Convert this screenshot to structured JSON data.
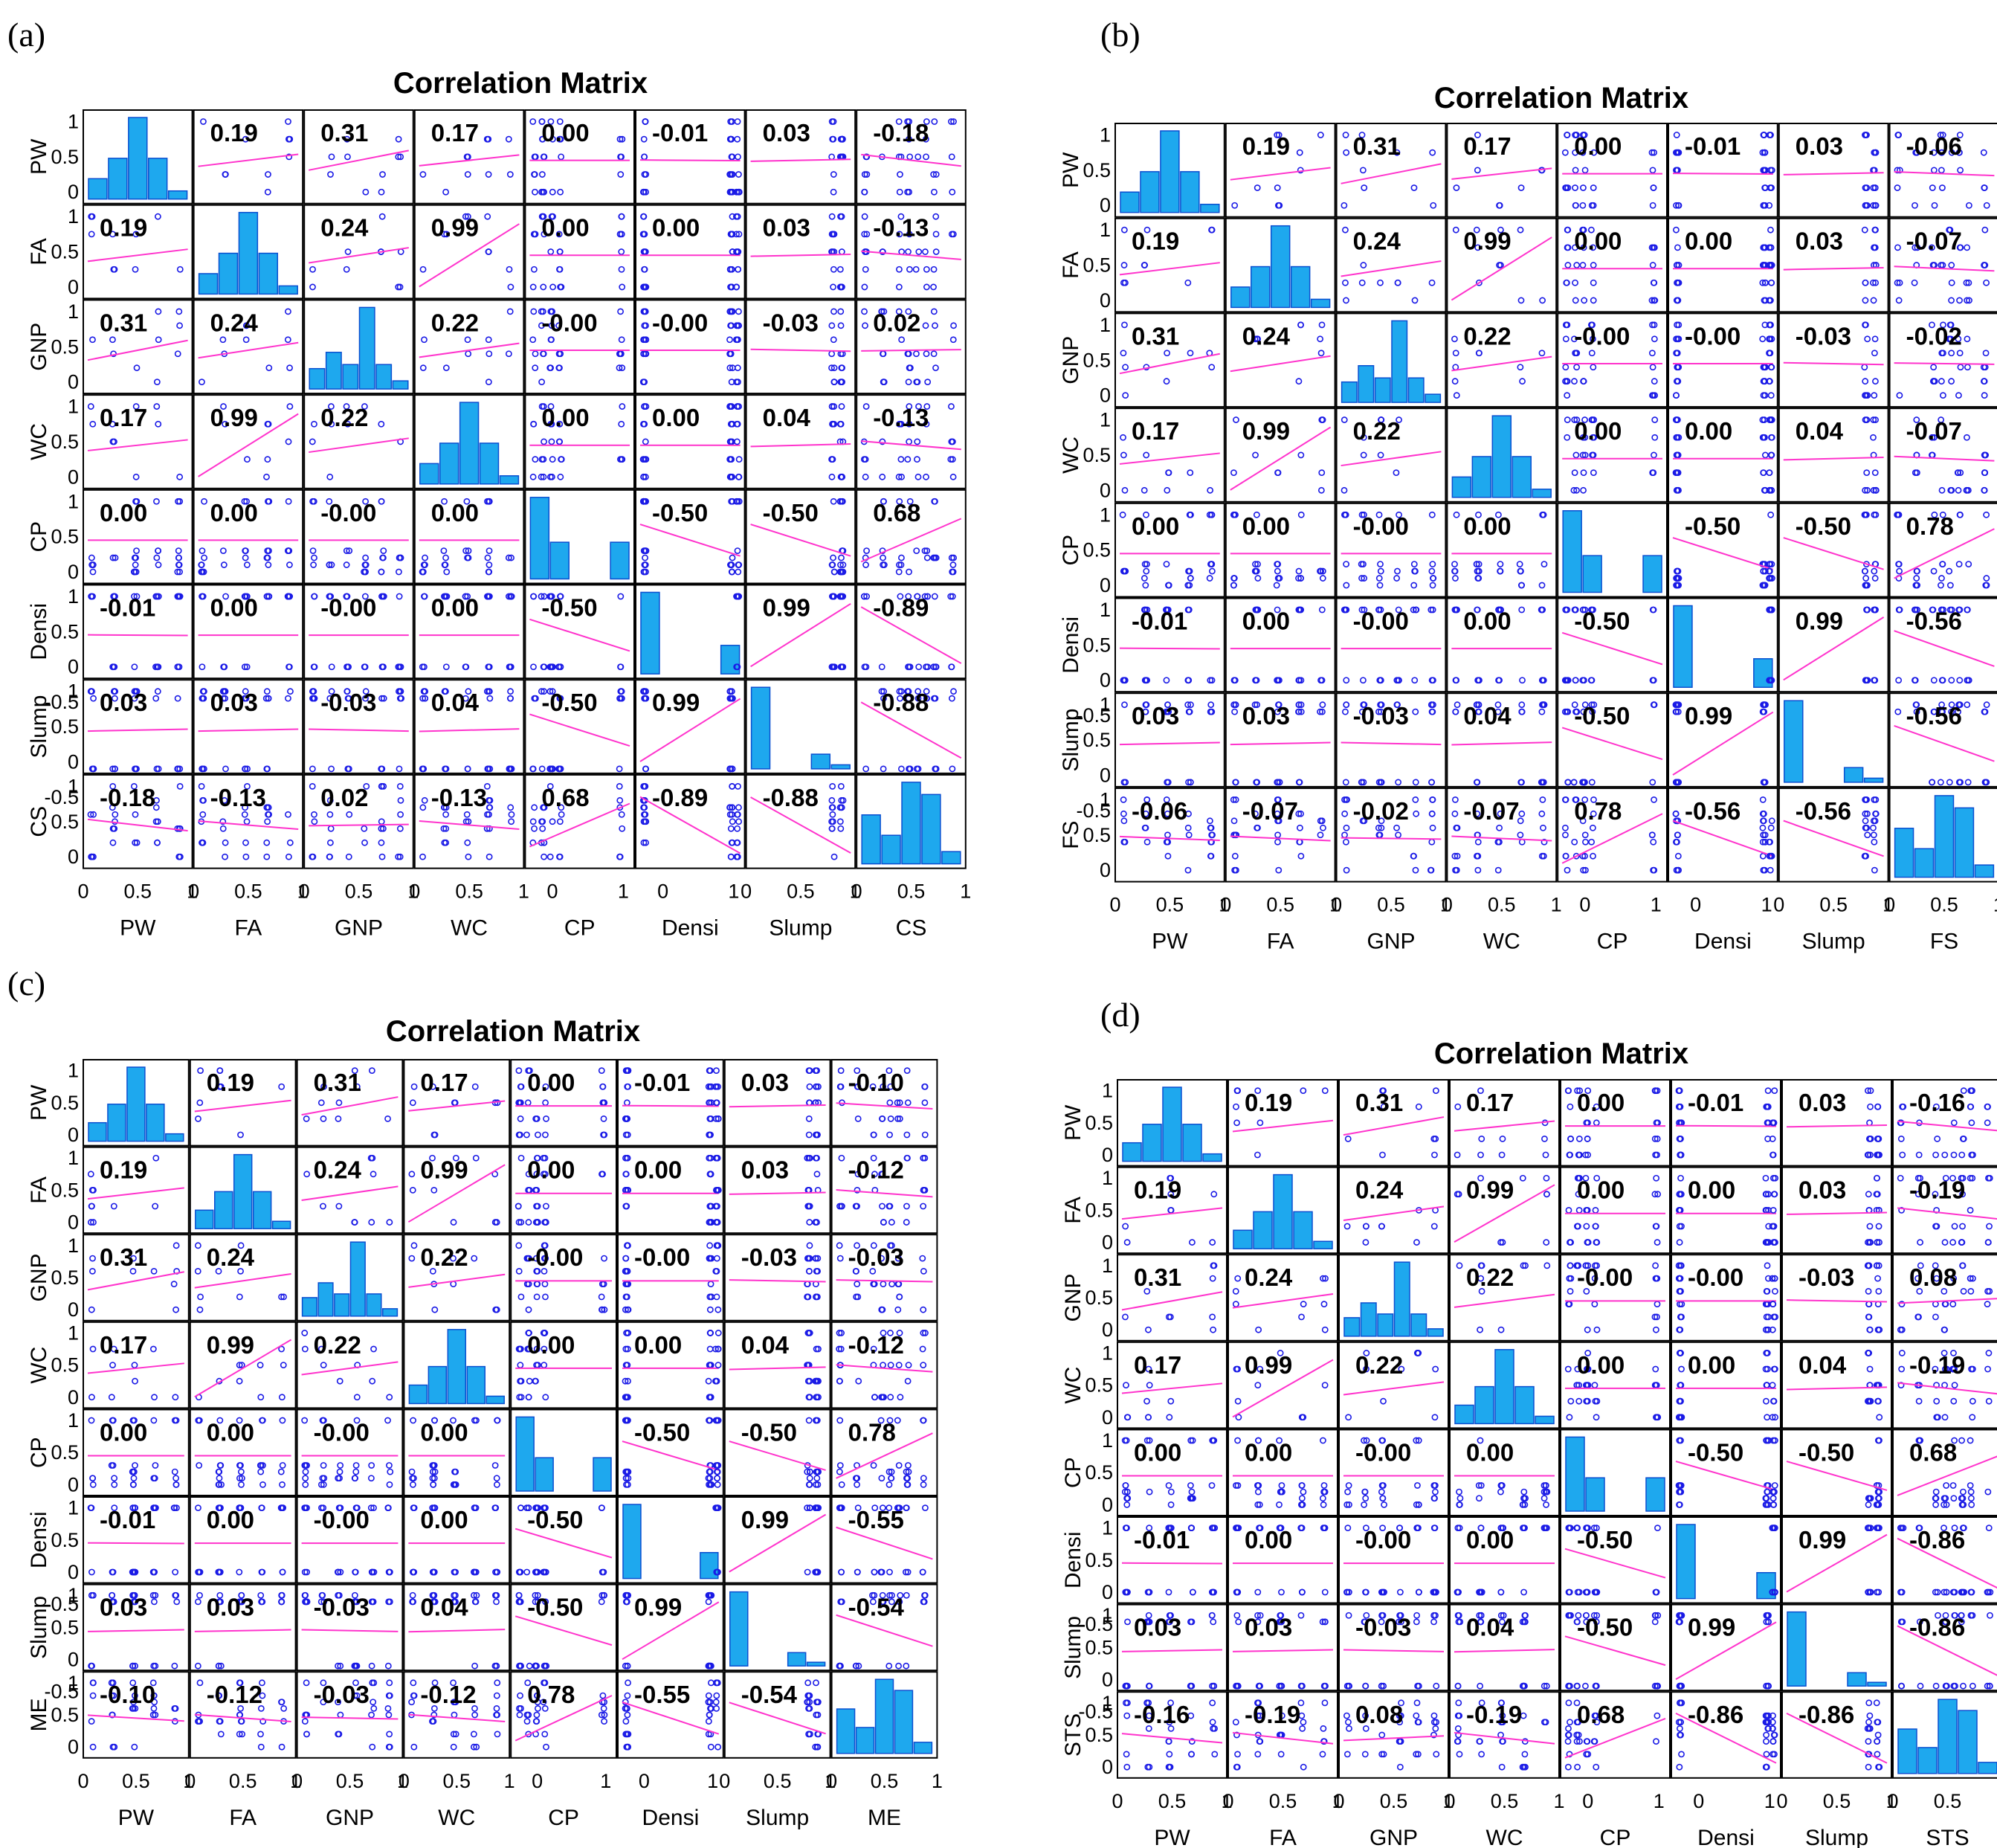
{
  "chart_data": [
    {
      "type": "scatter-matrix",
      "panel": "(a)",
      "title": "Correlation Matrix",
      "variables": [
        "PW",
        "FA",
        "GNP",
        "WC",
        "CP",
        "Densi",
        "Slump",
        "CS"
      ],
      "correlation": [
        [
          "",
          "0.19",
          "0.31",
          "0.17",
          "0.00",
          "-0.01",
          "0.03",
          "-0.18"
        ],
        [
          "0.19",
          "",
          "0.24",
          "0.99",
          "0.00",
          "0.00",
          "0.03",
          "-0.13"
        ],
        [
          "0.31",
          "0.24",
          "",
          "0.22",
          "-0.00",
          "-0.00",
          "-0.03",
          "0.02"
        ],
        [
          "0.17",
          "0.99",
          "0.22",
          "",
          "0.00",
          "0.00",
          "0.04",
          "-0.13"
        ],
        [
          "0.00",
          "0.00",
          "-0.00",
          "0.00",
          "",
          "-0.50",
          "-0.50",
          "0.68"
        ],
        [
          "-0.01",
          "0.00",
          "-0.00",
          "0.00",
          "-0.50",
          "",
          "0.99",
          "-0.89"
        ],
        [
          "0.03",
          "0.03",
          "-0.03",
          "0.04",
          "-0.50",
          "0.99",
          "",
          "-0.88"
        ],
        [
          "-0.18",
          "-0.13",
          "0.02",
          "-0.13",
          "0.68",
          "-0.89",
          "-0.88",
          ""
        ]
      ]
    },
    {
      "type": "scatter-matrix",
      "panel": "(b)",
      "title": "Correlation Matrix",
      "variables": [
        "PW",
        "FA",
        "GNP",
        "WC",
        "CP",
        "Densi",
        "Slump",
        "FS"
      ],
      "correlation": [
        [
          "",
          "0.19",
          "0.31",
          "0.17",
          "0.00",
          "-0.01",
          "0.03",
          "-0.06"
        ],
        [
          "0.19",
          "",
          "0.24",
          "0.99",
          "0.00",
          "0.00",
          "0.03",
          "-0.07"
        ],
        [
          "0.31",
          "0.24",
          "",
          "0.22",
          "-0.00",
          "-0.00",
          "-0.03",
          "-0.02"
        ],
        [
          "0.17",
          "0.99",
          "0.22",
          "",
          "0.00",
          "0.00",
          "0.04",
          "-0.07"
        ],
        [
          "0.00",
          "0.00",
          "-0.00",
          "0.00",
          "",
          "-0.50",
          "-0.50",
          "0.78"
        ],
        [
          "-0.01",
          "0.00",
          "-0.00",
          "0.00",
          "-0.50",
          "",
          "0.99",
          "-0.56"
        ],
        [
          "0.03",
          "0.03",
          "-0.03",
          "0.04",
          "-0.50",
          "0.99",
          "",
          "-0.56"
        ],
        [
          "-0.06",
          "-0.07",
          "-0.02",
          "-0.07",
          "0.78",
          "-0.56",
          "-0.56",
          ""
        ]
      ]
    },
    {
      "type": "scatter-matrix",
      "panel": "(c)",
      "title": "Correlation Matrix",
      "variables": [
        "PW",
        "FA",
        "GNP",
        "WC",
        "CP",
        "Densi",
        "Slump",
        "ME"
      ],
      "correlation": [
        [
          "",
          "0.19",
          "0.31",
          "0.17",
          "0.00",
          "-0.01",
          "0.03",
          "-0.10"
        ],
        [
          "0.19",
          "",
          "0.24",
          "0.99",
          "0.00",
          "0.00",
          "0.03",
          "-0.12"
        ],
        [
          "0.31",
          "0.24",
          "",
          "0.22",
          "-0.00",
          "-0.00",
          "-0.03",
          "-0.03"
        ],
        [
          "0.17",
          "0.99",
          "0.22",
          "",
          "0.00",
          "0.00",
          "0.04",
          "-0.12"
        ],
        [
          "0.00",
          "0.00",
          "-0.00",
          "0.00",
          "",
          "-0.50",
          "-0.50",
          "0.78"
        ],
        [
          "-0.01",
          "0.00",
          "-0.00",
          "0.00",
          "-0.50",
          "",
          "0.99",
          "-0.55"
        ],
        [
          "0.03",
          "0.03",
          "-0.03",
          "0.04",
          "-0.50",
          "0.99",
          "",
          "-0.54"
        ],
        [
          "-0.10",
          "-0.12",
          "-0.03",
          "-0.12",
          "0.78",
          "-0.55",
          "-0.54",
          ""
        ]
      ]
    },
    {
      "type": "scatter-matrix",
      "panel": "(d)",
      "title": "Correlation Matrix",
      "variables": [
        "PW",
        "FA",
        "GNP",
        "WC",
        "CP",
        "Densi",
        "Slump",
        "STS"
      ],
      "correlation": [
        [
          "",
          "0.19",
          "0.31",
          "0.17",
          "0.00",
          "-0.01",
          "0.03",
          "-0.16"
        ],
        [
          "0.19",
          "",
          "0.24",
          "0.99",
          "0.00",
          "0.00",
          "0.03",
          "-0.19"
        ],
        [
          "0.31",
          "0.24",
          "",
          "0.22",
          "-0.00",
          "-0.00",
          "-0.03",
          "0.08"
        ],
        [
          "0.17",
          "0.99",
          "0.22",
          "",
          "0.00",
          "0.00",
          "0.04",
          "-0.19"
        ],
        [
          "0.00",
          "0.00",
          "-0.00",
          "0.00",
          "",
          "-0.50",
          "-0.50",
          "0.68"
        ],
        [
          "-0.01",
          "0.00",
          "-0.00",
          "0.00",
          "-0.50",
          "",
          "0.99",
          "-0.86"
        ],
        [
          "0.03",
          "0.03",
          "-0.03",
          "0.04",
          "-0.50",
          "0.99",
          "",
          "-0.86"
        ],
        [
          "-0.16",
          "-0.19",
          "0.08",
          "-0.19",
          "0.68",
          "-0.86",
          "-0.86",
          ""
        ]
      ]
    }
  ],
  "y_tick_labels_standard": [
    "1",
    "0.5",
    "0"
  ],
  "y_tick_labels_extended": [
    "1",
    "0.5",
    "0",
    "-0.5"
  ],
  "x_tick_labels_full": [
    "0",
    "0.5",
    "1"
  ],
  "x_tick_labels_short": [
    "0",
    "1"
  ],
  "colors": {
    "scatter": "#1a1ae6",
    "fit_line": "#ff33cc",
    "hist_fill": "#1ea8ee",
    "hist_edge": "#0a4fd0"
  }
}
